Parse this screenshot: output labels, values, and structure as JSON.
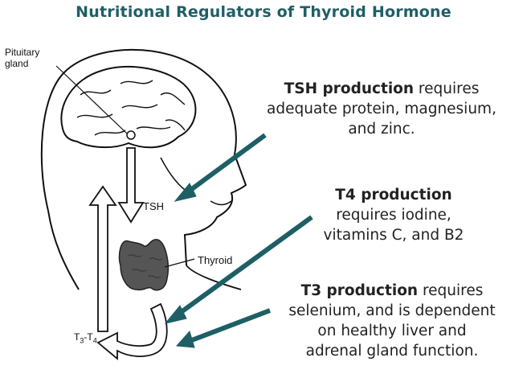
{
  "title": "Nutritional Regulators of Thyroid Hormone",
  "labels": {
    "pituitary_line1": "Pituitary",
    "pituitary_line2": "gland",
    "tsh": "TSH",
    "thyroid": "Thyroid",
    "t3t4_a": "T",
    "t3t4_sub_a": "3",
    "t3t4_dash": "-T",
    "t3t4_sub_b": "4"
  },
  "notes": {
    "tsh": {
      "heading": "TSH production",
      "line1_rest": " requires",
      "line2": "adequate protein, magnesium,",
      "line3": "and zinc."
    },
    "t4": {
      "heading": "T4 production",
      "line2": "requires iodine,",
      "line3": "vitamins C, and B2"
    },
    "t3": {
      "heading": "T3 production",
      "line1_rest": " requires",
      "line2": "selenium, and is dependent",
      "line3": "on healthy liver and",
      "line4": "adrenal gland function."
    }
  },
  "colors": {
    "title": "#1e5f66",
    "arrow": "#1e5f66",
    "thyroid": "#555555",
    "line_art": "#111111"
  }
}
